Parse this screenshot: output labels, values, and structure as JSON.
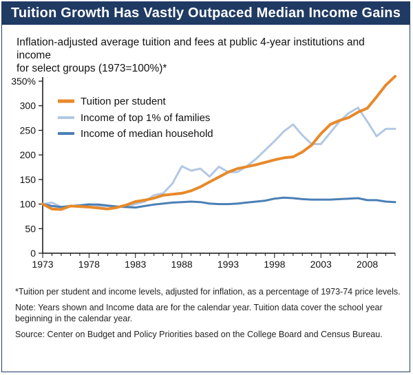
{
  "title": "Tuition Growth Has Vastly Outpaced Median Income Gains",
  "subtitle_line1": "Inflation-adjusted average tuition and fees at public 4-year institutions and income",
  "subtitle_line2": "for select groups (1973=100%)*",
  "notes": [
    "*Tuition per student and income levels, adjusted for inflation, as a percentage of 1973-74 price levels.",
    "Note:  Years shown and Income data are for the calendar year.  Tuition data cover the school year beginning in the calendar year.",
    "Source:  Center on Budget and Policy Priorities based on the College Board and Census Bureau."
  ],
  "colors": {
    "title_bg": "#1f3a63",
    "tuition": "#e8892a",
    "top1": "#b2c8e2",
    "median": "#4a7fb5"
  },
  "chart_data": {
    "type": "line",
    "ylim": [
      0,
      350
    ],
    "xlim": [
      1973,
      2011
    ],
    "y_ticks": [
      "0",
      "50",
      "100",
      "150",
      "200",
      "250",
      "300",
      "350%"
    ],
    "y_tick_values": [
      0,
      50,
      100,
      150,
      200,
      250,
      300,
      350
    ],
    "x_ticks": [
      "1973",
      "1978",
      "1983",
      "1988",
      "1993",
      "1998",
      "2003",
      "2008"
    ],
    "x_tick_values": [
      1973,
      1978,
      1983,
      1988,
      1993,
      1998,
      2003,
      2008
    ],
    "legend_position": "top-left",
    "series": [
      {
        "name": "Tuition per student",
        "color": "#e8892a",
        "x": [
          1973,
          1974,
          1975,
          1976,
          1977,
          1978,
          1979,
          1980,
          1981,
          1982,
          1983,
          1984,
          1985,
          1986,
          1987,
          1988,
          1989,
          1990,
          1991,
          1992,
          1993,
          1994,
          1995,
          1996,
          1997,
          1998,
          1999,
          2000,
          2001,
          2002,
          2003,
          2004,
          2005,
          2006,
          2007,
          2008,
          2009,
          2010,
          2011
        ],
        "values": [
          100,
          90,
          89,
          96,
          95,
          94,
          92,
          90,
          93,
          98,
          105,
          108,
          112,
          118,
          120,
          122,
          127,
          135,
          145,
          155,
          165,
          172,
          176,
          180,
          185,
          190,
          194,
          196,
          206,
          220,
          243,
          262,
          270,
          276,
          287,
          295,
          318,
          342,
          360
        ]
      },
      {
        "name": "Income of top 1% of families",
        "color": "#b2c8e2",
        "x": [
          1973,
          1974,
          1975,
          1976,
          1977,
          1978,
          1979,
          1980,
          1981,
          1982,
          1983,
          1984,
          1985,
          1986,
          1987,
          1988,
          1989,
          1990,
          1991,
          1992,
          1993,
          1994,
          1995,
          1996,
          1997,
          1998,
          1999,
          2000,
          2001,
          2002,
          2003,
          2004,
          2005,
          2006,
          2007,
          2008,
          2009,
          2010,
          2011
        ],
        "values": [
          100,
          103,
          94,
          96,
          98,
          100,
          97,
          96,
          95,
          94,
          100,
          105,
          118,
          122,
          142,
          177,
          168,
          172,
          156,
          176,
          165,
          165,
          177,
          192,
          210,
          228,
          248,
          262,
          240,
          222,
          222,
          245,
          268,
          285,
          296,
          268,
          238,
          253,
          253
        ]
      },
      {
        "name": "Income of median household",
        "color": "#4a7fb5",
        "x": [
          1973,
          1974,
          1975,
          1976,
          1977,
          1978,
          1979,
          1980,
          1981,
          1982,
          1983,
          1984,
          1985,
          1986,
          1987,
          1988,
          1989,
          1990,
          1991,
          1992,
          1993,
          1994,
          1995,
          1996,
          1997,
          1998,
          1999,
          2000,
          2001,
          2002,
          2003,
          2004,
          2005,
          2006,
          2007,
          2008,
          2009,
          2010,
          2011
        ],
        "values": [
          100,
          96,
          94,
          96,
          97,
          99,
          99,
          97,
          95,
          94,
          93,
          96,
          99,
          101,
          103,
          104,
          105,
          104,
          101,
          100,
          100,
          101,
          103,
          105,
          107,
          111,
          113,
          112,
          110,
          109,
          109,
          109,
          110,
          111,
          112,
          108,
          108,
          105,
          104
        ]
      }
    ]
  }
}
